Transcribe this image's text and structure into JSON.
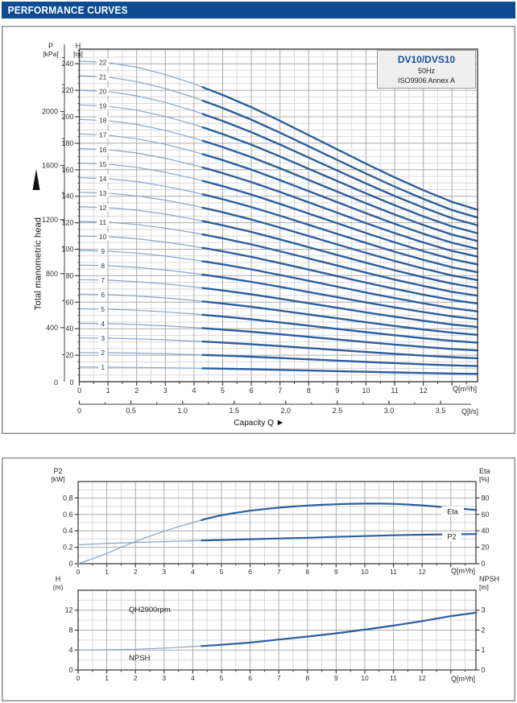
{
  "header": {
    "title": "PERFORMANCE CURVES"
  },
  "panel1": {
    "info_box": {
      "model": "DV10/DVS10",
      "frequency": "50Hz",
      "standard": "ISO9906 Annex A"
    },
    "y_axis_pressure": {
      "label": "P",
      "unit": "[kPa]",
      "ticks": [
        2000,
        1600,
        1200,
        800,
        400
      ],
      "zero": "0"
    },
    "y_axis_head": {
      "label": "H",
      "unit": "[m]",
      "ticks": [
        240,
        220,
        200,
        180,
        160,
        140,
        120,
        100,
        80,
        60,
        40,
        20
      ],
      "zero": "0"
    },
    "x_axis_primary": {
      "unit": "Q[m³/h]",
      "ticks": [
        0,
        1,
        2,
        3,
        4,
        5,
        6,
        7,
        8,
        9,
        10,
        11,
        12
      ]
    },
    "x_axis_secondary": {
      "unit": "Q[l/s]",
      "ticks": [
        "0",
        "0.5",
        "1.0",
        "1.5",
        "2.0",
        "2.5",
        "3.0",
        "3.5"
      ]
    },
    "x_caption": "Capacity Q",
    "x_caption_arrow": "►",
    "y_caption": "Total manometric head",
    "stage_labels": [
      1,
      2,
      3,
      4,
      5,
      6,
      7,
      8,
      9,
      10,
      11,
      12,
      13,
      14,
      15,
      16,
      17,
      18,
      19,
      20,
      21,
      22
    ]
  },
  "panel2": {
    "chartA": {
      "y_left_label": "P2",
      "y_left_unit": "[kW]",
      "y_left_ticks": [
        "0.8",
        "0.6",
        "0.4",
        "0.2",
        "0"
      ],
      "y_right_label": "Eta",
      "y_right_unit": "[%]",
      "y_right_ticks": [
        "80",
        "60",
        "40",
        "20",
        "0"
      ],
      "x_unit": "Q[m³/h]",
      "x_ticks": [
        0,
        1,
        2,
        3,
        4,
        5,
        6,
        7,
        8,
        9,
        10,
        11,
        12
      ],
      "curve_labels": {
        "eta": "Eta",
        "p2": "P2"
      }
    },
    "chartB": {
      "y_left_label": "H",
      "y_left_unit": "(m)",
      "y_left_ticks": [
        "12",
        "8",
        "4",
        "0"
      ],
      "y_right_label": "NPSH",
      "y_right_unit": "[m]",
      "y_right_ticks": [
        "3",
        "2",
        "1",
        "0"
      ],
      "x_unit": "Q[m³/h]",
      "x_ticks": [
        0,
        1,
        2,
        3,
        4,
        5,
        6,
        7,
        8,
        9,
        10,
        11,
        12
      ],
      "curve_labels": {
        "qh": "QH2900rpm",
        "npsh": "NPSH"
      }
    }
  },
  "colors": {
    "header_bg": "#0d4b92",
    "model_blue": "#17509e",
    "curve_thick": "#2a5f9e",
    "curve_thin": "#84a5cb",
    "grid_minor": "#d9d9d9",
    "grid_major": "#ababab",
    "plot_border": "#3f3f3f",
    "panel_border": "#8f8f8f",
    "tick_text": "#2e2e2e"
  },
  "chart_data": [
    {
      "type": "line",
      "title": "DV10/DVS10 multistage head curves, 50Hz",
      "xlabel": "Q [m3/h]",
      "x_range": [
        0,
        13.9
      ],
      "x_secondary": "Q [l/s] = Q[m3/h]/3.6, ticks 0-3.5",
      "ylabel_left_inner": "H [m], range 0-250, ticks every 20",
      "ylabel_left_outer": "P [kPa], ticks 0-2000 every 400 (P = 9.81*H)",
      "stages": [
        1,
        2,
        3,
        4,
        5,
        6,
        7,
        8,
        9,
        10,
        11,
        12,
        13,
        14,
        15,
        16,
        17,
        18,
        19,
        20,
        21,
        22
      ],
      "single_stage_head_m": [
        [
          0,
          11.0
        ],
        [
          1,
          10.95
        ],
        [
          2,
          10.79
        ],
        [
          3,
          10.54
        ],
        [
          4,
          10.22
        ],
        [
          5,
          9.84
        ],
        [
          6,
          9.42
        ],
        [
          7,
          8.95
        ],
        [
          8,
          8.46
        ],
        [
          9,
          7.97
        ],
        [
          10,
          7.48
        ],
        [
          11,
          7.01
        ],
        [
          12,
          6.57
        ],
        [
          13,
          6.17
        ],
        [
          13.89,
          5.9
        ]
      ],
      "note": "curve n = n x single_stage_head; thin line below Q=4.3, thick above"
    },
    {
      "type": "line",
      "title": "P2 and Eta vs Q",
      "xlabel": "Q [m3/h]",
      "x_range": [
        0,
        13.9
      ],
      "ylabel_left": "P2 [kW], range 0-1.0, ticks every 0.2",
      "ylabel_right": "Eta [%], range 0-100, ticks every 20",
      "series": [
        {
          "name": "Eta",
          "unit": "%",
          "points": [
            [
              0,
              0
            ],
            [
              0.5,
              6
            ],
            [
              1,
              12.5
            ],
            [
              1.5,
              20
            ],
            [
              2,
              27
            ],
            [
              2.5,
              33.5
            ],
            [
              3,
              39.5
            ],
            [
              3.5,
              45
            ],
            [
              4,
              50
            ],
            [
              4.5,
              55
            ],
            [
              5,
              59
            ],
            [
              5.5,
              62
            ],
            [
              6,
              64.5
            ],
            [
              6.5,
              66.5
            ],
            [
              7,
              68.2
            ],
            [
              7.5,
              69.6
            ],
            [
              8,
              70.8
            ],
            [
              8.5,
              71.7
            ],
            [
              9,
              72.4
            ],
            [
              9.5,
              72.9
            ],
            [
              10,
              73.1
            ],
            [
              10.5,
              73.1
            ],
            [
              11,
              72.8
            ],
            [
              11.5,
              72.1
            ],
            [
              12,
              71
            ],
            [
              12.5,
              69.6
            ],
            [
              13,
              68
            ],
            [
              13.5,
              66.6
            ],
            [
              13.89,
              65.4
            ]
          ]
        },
        {
          "name": "P2",
          "unit": "kW",
          "points": [
            [
              0,
              0.23
            ],
            [
              1,
              0.246
            ],
            [
              2,
              0.259
            ],
            [
              3,
              0.269
            ],
            [
              4,
              0.279
            ],
            [
              5,
              0.289
            ],
            [
              6,
              0.298
            ],
            [
              7,
              0.307
            ],
            [
              8,
              0.316
            ],
            [
              9,
              0.326
            ],
            [
              10,
              0.336
            ],
            [
              11,
              0.346
            ],
            [
              12,
              0.353
            ],
            [
              13,
              0.358
            ],
            [
              13.89,
              0.361
            ]
          ]
        }
      ]
    },
    {
      "type": "line",
      "title": "NPSH vs Q (QH2900rpm)",
      "xlabel": "Q [m3/h]",
      "x_range": [
        0,
        13.9
      ],
      "ylabel_left": "H (m), range 0-16, ticks every 4",
      "ylabel_right": "NPSH [m] = H/4, ticks 0-3",
      "series": [
        {
          "name": "NPSH",
          "unit": "m (left H scale)",
          "points": [
            [
              0,
              4.0
            ],
            [
              1,
              4.05
            ],
            [
              2,
              4.15
            ],
            [
              3,
              4.4
            ],
            [
              4,
              4.7
            ],
            [
              5,
              5.05
            ],
            [
              6,
              5.5
            ],
            [
              7,
              6.1
            ],
            [
              8,
              6.7
            ],
            [
              9,
              7.35
            ],
            [
              10,
              8.1
            ],
            [
              11,
              8.9
            ],
            [
              12,
              9.8
            ],
            [
              13,
              10.8
            ],
            [
              13.89,
              11.5
            ]
          ]
        }
      ]
    }
  ]
}
